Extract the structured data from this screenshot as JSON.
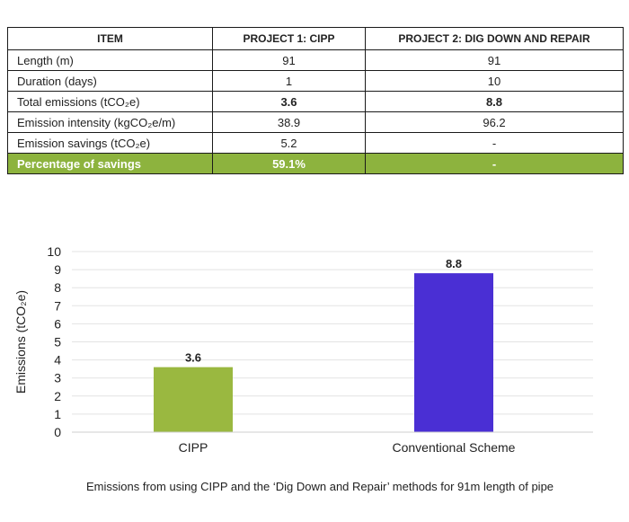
{
  "table": {
    "headers": [
      "ITEM",
      "PROJECT 1: CIPP",
      "PROJECT 2: DIG DOWN AND REPAIR"
    ],
    "rows": [
      {
        "item": "Length (m)",
        "p1": "91",
        "p2": "91"
      },
      {
        "item": "Duration (days)",
        "p1": "1",
        "p2": "10"
      },
      {
        "item": "Total emissions (tCO₂e)",
        "p1": "3.6",
        "p2": "8.8"
      },
      {
        "item": "Emission intensity (kgCO₂e/m)",
        "p1": "38.9",
        "p2": "96.2"
      },
      {
        "item": "Emission savings (tCO₂e)",
        "p1": "5.2",
        "p2": "-"
      },
      {
        "item": "Percentage of savings",
        "p1": "59.1%",
        "p2": "-"
      }
    ]
  },
  "chart_data": {
    "type": "bar",
    "categories": [
      "CIPP",
      "Conventional Scheme"
    ],
    "values": [
      3.6,
      8.8
    ],
    "data_labels": [
      "3.6",
      "8.8"
    ],
    "bar_colors": [
      "#9ab840",
      "#4a2fd4"
    ],
    "ylabel": "Emissions (tCO₂e)",
    "xlabel": "",
    "ylim": [
      0,
      10
    ],
    "yticks": [
      0,
      1,
      2,
      3,
      4,
      5,
      6,
      7,
      8,
      9,
      10
    ],
    "grid": true,
    "legend": "none"
  },
  "caption": "Emissions from using CIPP and the ‘Dig Down and Repair’ methods for 91m length of pipe",
  "colors": {
    "highlight_row": "#8db33e"
  }
}
